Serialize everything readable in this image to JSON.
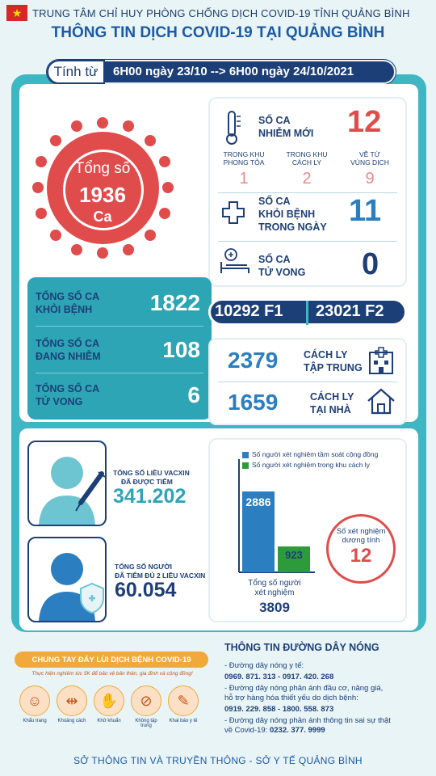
{
  "header": {
    "agency": "TRUNG TÂM CHỈ HUY PHÒNG CHỐNG DỊCH COVID-19 TỈNH QUẢNG BÌNH",
    "title": "THÔNG TIN DỊCH COVID-19 TẠI QUẢNG BÌNH",
    "date_label": "Tính từ",
    "date_range": "6H00 ngày 23/10 --> 6H00 ngày 24/10/2021",
    "flag_star": "★"
  },
  "total": {
    "label": "Tổng số",
    "value": "1936",
    "unit": "Ca"
  },
  "daily": {
    "new_label_1": "SỐ CA",
    "new_label_2": "NHIỄM MỚI",
    "new_value": "12",
    "sub": [
      {
        "label_1": "TRONG KHU",
        "label_2": "PHONG TỎA",
        "value": "1"
      },
      {
        "label_1": "TRONG KHU",
        "label_2": "CÁCH LY",
        "value": "2"
      },
      {
        "label_1": "VỀ TỪ",
        "label_2": "VÙNG DỊCH",
        "value": "9"
      }
    ],
    "recover_label_1": "SỐ CA",
    "recover_label_2": "KHỎI BỆNH",
    "recover_label_3": "TRONG NGÀY",
    "recover_value": "11",
    "death_label_1": "SỐ CA",
    "death_label_2": "TỬ VONG",
    "death_value": "0"
  },
  "cumulative": [
    {
      "label_1": "TỔNG SỐ CA",
      "label_2": "KHỎI BỆNH",
      "value": "1822"
    },
    {
      "label_1": "TỔNG SỐ CA",
      "label_2": "ĐANG NHIỄM",
      "value": "108"
    },
    {
      "label_1": "TỔNG SỐ CA",
      "label_2": "TỬ VONG",
      "value": "6"
    }
  ],
  "contacts": {
    "f1": "10292 F1",
    "f2": "23021 F2"
  },
  "isolation": {
    "central_value": "2379",
    "central_label_1": "CÁCH LY",
    "central_label_2": "TẬP TRUNG",
    "home_value": "1659",
    "home_label_1": "CÁCH LY",
    "home_label_2": "TẠI NHÀ"
  },
  "vaccine": {
    "doses_label_1": "TỔNG SỐ LIỀU VACXIN",
    "doses_label_2": "ĐÃ ĐƯỢC TIÊM",
    "doses_value": "341.202",
    "full_label_1": "TỔNG SỐ NGƯỜI",
    "full_label_2": "ĐÃ TIÊM ĐỦ 2 LIỀU VACXIN",
    "full_value": "60.054"
  },
  "testing": {
    "legend": [
      {
        "name": "Số người xét nghiệm tầm soát cộng đồng",
        "color": "#2b7ec0"
      },
      {
        "name": "Số người xét nghiệm trong khu cách ly",
        "color": "#2e9b3a"
      }
    ],
    "bars": [
      {
        "value": 2886,
        "label": "2886"
      },
      {
        "value": 923,
        "label": "923"
      }
    ],
    "total_label_1": "Tổng số người",
    "total_label_2": "xét nghiệm",
    "total_value": "3809",
    "positive_label_1": "Số xét nghiệm",
    "positive_label_2": "dương tính",
    "positive_value": "12"
  },
  "campaign": {
    "title": "CHUNG TAY ĐẨY LÙI DỊCH BỆNH COVID-19",
    "tip": "Thực hiện nghiêm túc 5K để bảo vệ bản thân, gia đình và cộng đồng!",
    "actions": [
      {
        "icon": "mask-icon",
        "glyph": "☺",
        "label": "Khẩu trang"
      },
      {
        "icon": "distance-icon",
        "glyph": "⇹",
        "label": "Khoảng cách"
      },
      {
        "icon": "hand-wash-icon",
        "glyph": "✋",
        "label": "Khử khuẩn"
      },
      {
        "icon": "no-gathering-icon",
        "glyph": "⊘",
        "label": "Không tập trung"
      },
      {
        "icon": "health-declaration-icon",
        "glyph": "✎",
        "label": "Khai báo y tế"
      }
    ]
  },
  "hotline": {
    "title": "THÔNG TIN ĐƯỜNG DÂY NÓNG",
    "l1": "- Đường dây nóng y tế:",
    "l2": "0969. 871. 313   -   0917. 420. 268",
    "l3": "- Đường dây nóng phản ánh đầu cơ, nâng giá,",
    "l4": "hỗ trợ hàng hóa thiết yếu do dịch bệnh:",
    "l5": "0919. 229. 858   -   1800. 558. 873",
    "l6": "- Đường dây nóng phản ánh thông tin sai sự thật",
    "l7a": "về Covid-19: ",
    "l7b": "0232. 377. 9999"
  },
  "footer": "SỞ THÔNG TIN VÀ TRUYỀN THÔNG  -  SỞ Y TẾ QUẢNG BÌNH"
}
